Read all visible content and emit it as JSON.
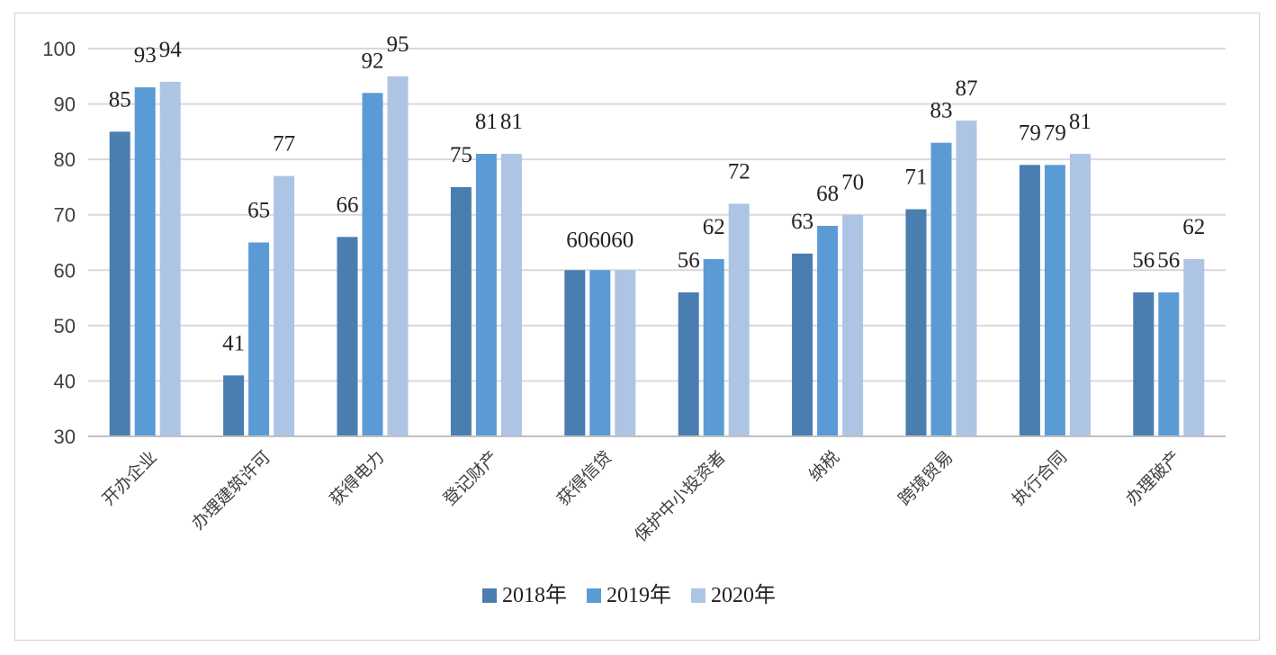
{
  "chart_data": {
    "type": "bar",
    "title": "",
    "xlabel": "",
    "ylabel": "",
    "ylim": [
      30,
      100
    ],
    "yticks": [
      30,
      40,
      50,
      60,
      70,
      80,
      90,
      100
    ],
    "grid": true,
    "legend_position": "bottom",
    "categories": [
      "开办企业",
      "办理建筑许可",
      "获得电力",
      "登记财产",
      "获得信贷",
      "保护中小投资者",
      "纳税",
      "跨境贸易",
      "执行合同",
      "办理破产"
    ],
    "series": [
      {
        "name": "2018年",
        "color": "#4a7eb0",
        "values": [
          85,
          41,
          66,
          75,
          60,
          56,
          63,
          71,
          79,
          56
        ]
      },
      {
        "name": "2019年",
        "color": "#5b9bd5",
        "values": [
          93,
          65,
          92,
          81,
          60,
          62,
          68,
          83,
          79,
          56
        ]
      },
      {
        "name": "2020年",
        "color": "#adc4e5",
        "values": [
          94,
          77,
          95,
          81,
          60,
          72,
          70,
          87,
          81,
          62
        ]
      }
    ]
  }
}
